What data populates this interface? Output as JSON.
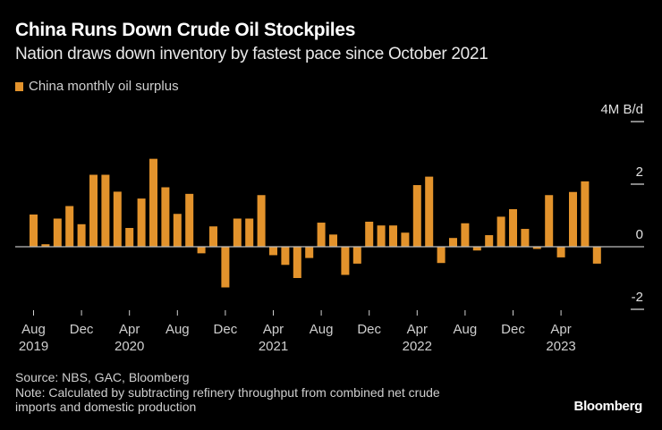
{
  "header": {
    "title": "China Runs Down Crude Oil Stockpiles",
    "subtitle": "Nation draws down inventory by fastest pace since October 2021"
  },
  "legend": {
    "label": "China monthly oil surplus",
    "color": "#e3932c"
  },
  "footer": {
    "source": "Source: NBS, GAC, Bloomberg",
    "note_line1": "Note: Calculated by subtracting refinery throughput from combined net crude",
    "note_line2": "imports and domestic production",
    "brand": "Bloomberg"
  },
  "chart_data": {
    "type": "bar",
    "title": "China Runs Down Crude Oil Stockpiles",
    "subtitle": "Nation draws down inventory by fastest pace since October 2021",
    "ylabel": "M B/d",
    "xlabel": "",
    "ylim": [
      -2,
      4
    ],
    "y_ticks": [
      {
        "value": 4,
        "label": "4M B/d"
      },
      {
        "value": 2,
        "label": "2"
      },
      {
        "value": 0,
        "label": "0"
      },
      {
        "value": -2,
        "label": "-2"
      }
    ],
    "x_ticks": [
      {
        "index": 0,
        "label": "Aug",
        "year": "2019"
      },
      {
        "index": 4,
        "label": "Dec",
        "year": ""
      },
      {
        "index": 8,
        "label": "Apr",
        "year": "2020"
      },
      {
        "index": 12,
        "label": "Aug",
        "year": ""
      },
      {
        "index": 16,
        "label": "Dec",
        "year": ""
      },
      {
        "index": 20,
        "label": "Apr",
        "year": "2021"
      },
      {
        "index": 24,
        "label": "Aug",
        "year": ""
      },
      {
        "index": 28,
        "label": "Dec",
        "year": ""
      },
      {
        "index": 32,
        "label": "Apr",
        "year": "2022"
      },
      {
        "index": 36,
        "label": "Aug",
        "year": ""
      },
      {
        "index": 40,
        "label": "Dec",
        "year": ""
      },
      {
        "index": 44,
        "label": "Apr",
        "year": "2023"
      }
    ],
    "grid": false,
    "legend_position": "top-left",
    "series": [
      {
        "name": "China monthly oil surplus",
        "color": "#e3932c",
        "categories": [
          "2019-08",
          "2019-09",
          "2019-10",
          "2019-11",
          "2019-12",
          "2020-01",
          "2020-02",
          "2020-03",
          "2020-04",
          "2020-05",
          "2020-06",
          "2020-07",
          "2020-08",
          "2020-09",
          "2020-10",
          "2020-11",
          "2020-12",
          "2021-01",
          "2021-02",
          "2021-03",
          "2021-04",
          "2021-05",
          "2021-06",
          "2021-07",
          "2021-08",
          "2021-09",
          "2021-10",
          "2021-11",
          "2021-12",
          "2022-01",
          "2022-02",
          "2022-03",
          "2022-04",
          "2022-05",
          "2022-06",
          "2022-07",
          "2022-08",
          "2022-09",
          "2022-10",
          "2022-11",
          "2022-12",
          "2023-01",
          "2023-02",
          "2023-03",
          "2023-04",
          "2023-05",
          "2023-06",
          "2023-07"
        ],
        "values": [
          1.03,
          0.08,
          0.9,
          1.3,
          0.72,
          2.3,
          2.3,
          1.76,
          0.6,
          1.54,
          2.81,
          1.9,
          1.05,
          1.69,
          -0.21,
          0.65,
          -1.3,
          0.9,
          0.9,
          1.65,
          -0.27,
          -0.58,
          -1.0,
          -0.36,
          0.77,
          0.39,
          -0.9,
          -0.54,
          0.8,
          0.68,
          0.68,
          0.45,
          1.97,
          2.24,
          -0.52,
          0.28,
          0.75,
          -0.12,
          0.37,
          0.96,
          1.2,
          0.57,
          -0.07,
          1.65,
          -0.34,
          1.75,
          2.09,
          -0.54
        ]
      }
    ]
  }
}
